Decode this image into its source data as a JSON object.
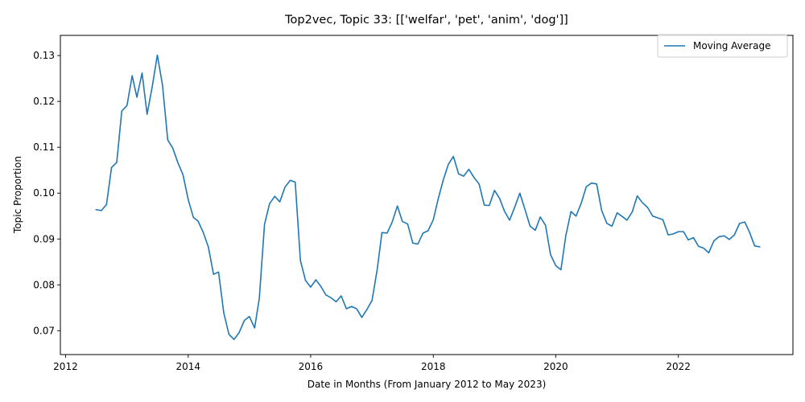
{
  "chart_data": {
    "type": "line",
    "title": "Top2vec, Topic 33: [['welfar', 'pet', 'anim', 'dog']]",
    "xlabel": "Date in Months (From January 2012 to May 2023)",
    "ylabel": "Topic Proportion",
    "xlim": [
      "2011-12-01",
      "2023-11-15"
    ],
    "ylim": [
      0.0648,
      0.1344
    ],
    "x_ticks": [
      "2012",
      "2014",
      "2016",
      "2018",
      "2020",
      "2022"
    ],
    "y_ticks": [
      "0.07",
      "0.08",
      "0.09",
      "0.10",
      "0.11",
      "0.12",
      "0.13"
    ],
    "grid": false,
    "legend_position": "upper right",
    "series": [
      {
        "name": "Moving Average",
        "color": "#1f77b4",
        "start": "2012-07",
        "step": "monthly",
        "values": [
          0.0964,
          0.0962,
          0.0975,
          0.1056,
          0.1067,
          0.1179,
          0.1191,
          0.1256,
          0.1209,
          0.1262,
          0.1172,
          0.1233,
          0.1301,
          0.1235,
          0.1116,
          0.1098,
          0.1066,
          0.104,
          0.0986,
          0.0947,
          0.0939,
          0.0914,
          0.0883,
          0.0823,
          0.0828,
          0.0739,
          0.0692,
          0.0681,
          0.0696,
          0.0722,
          0.0731,
          0.0706,
          0.0771,
          0.0932,
          0.0977,
          0.0993,
          0.0981,
          0.1013,
          0.1028,
          0.1024,
          0.0853,
          0.081,
          0.0795,
          0.0811,
          0.0797,
          0.0778,
          0.0772,
          0.0763,
          0.0776,
          0.0748,
          0.0753,
          0.0748,
          0.0729,
          0.0746,
          0.0766,
          0.0834,
          0.0914,
          0.0913,
          0.0937,
          0.0972,
          0.0938,
          0.0933,
          0.0891,
          0.0889,
          0.0913,
          0.0918,
          0.0942,
          0.099,
          0.1028,
          0.1063,
          0.108,
          0.1042,
          0.1037,
          0.1052,
          0.1034,
          0.102,
          0.0974,
          0.0973,
          0.1006,
          0.0988,
          0.0961,
          0.0941,
          0.0969,
          0.1,
          0.0965,
          0.0928,
          0.0919,
          0.0948,
          0.093,
          0.0866,
          0.0842,
          0.0833,
          0.0907,
          0.096,
          0.095,
          0.0978,
          0.1014,
          0.1022,
          0.102,
          0.0962,
          0.0934,
          0.0928,
          0.0957,
          0.0949,
          0.0941,
          0.0959,
          0.0994,
          0.0979,
          0.0969,
          0.095,
          0.0946,
          0.0942,
          0.0909,
          0.0911,
          0.0916,
          0.0916,
          0.0898,
          0.0903,
          0.0884,
          0.088,
          0.087,
          0.0896,
          0.0905,
          0.0907,
          0.0899,
          0.0909,
          0.0934,
          0.0937,
          0.0915,
          0.0885,
          0.0883
        ]
      }
    ]
  }
}
